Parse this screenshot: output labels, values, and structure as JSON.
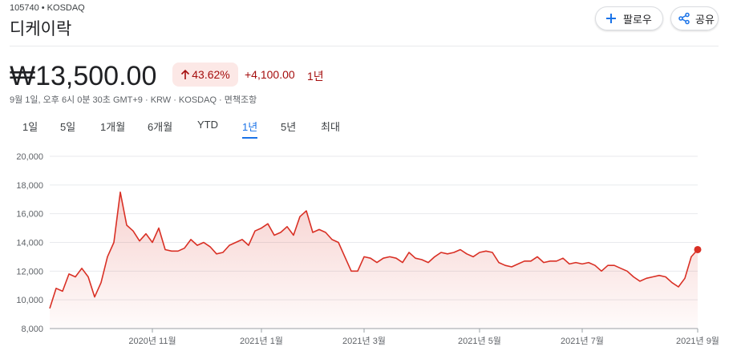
{
  "header": {
    "ticker": "105740 • KOSDAQ",
    "name": "디케이락",
    "buttons": [
      "팔로우",
      "공유"
    ]
  },
  "quote": {
    "price": "₩13,500.00",
    "change_percent": "43.62%",
    "change": "+4,100.00",
    "period": "1년",
    "meta": "9월 1일, 오후 6시 0분 30초 GMT+9 · KRW · KOSDAQ · 면책조항"
  },
  "tabs": {
    "items": [
      "1일",
      "5일",
      "1개월",
      "6개월",
      "YTD",
      "1년",
      "5년",
      "최대"
    ],
    "selected": 5
  },
  "chart_data": {
    "type": "line",
    "color": "#d93025",
    "grid": true,
    "ylim": [
      8000,
      20000
    ],
    "yticks": [
      {
        "value": 8000,
        "label": "8,000"
      },
      {
        "value": 10000,
        "label": "10,000"
      },
      {
        "value": 12000,
        "label": "12,000"
      },
      {
        "value": 14000,
        "label": "14,000"
      },
      {
        "value": 16000,
        "label": "16,000"
      },
      {
        "value": 18000,
        "label": "18,000"
      },
      {
        "value": 20000,
        "label": "20,000"
      }
    ],
    "xlim": [
      0,
      101
    ],
    "xticks": [
      {
        "value": 16,
        "label": "2020년 11월"
      },
      {
        "value": 33,
        "label": "2021년 1월"
      },
      {
        "value": 49,
        "label": "2021년 3월"
      },
      {
        "value": 67,
        "label": "2021년 5월"
      },
      {
        "value": 83,
        "label": "2021년 7월"
      },
      {
        "value": 101,
        "label": "2021년 9월"
      }
    ],
    "values": [
      9400,
      10800,
      10600,
      11800,
      11600,
      12200,
      11600,
      10200,
      11200,
      13000,
      14000,
      17500,
      15200,
      14800,
      14100,
      14600,
      14000,
      15000,
      13500,
      13400,
      13400,
      13600,
      14200,
      13800,
      14000,
      13700,
      13200,
      13300,
      13800,
      14000,
      14200,
      13800,
      14800,
      15000,
      15300,
      14500,
      14700,
      15100,
      14500,
      15800,
      16200,
      14700,
      14900,
      14700,
      14200,
      14000,
      13000,
      12000,
      12000,
      13000,
      12900,
      12600,
      12900,
      13000,
      12900,
      12600,
      13300,
      12900,
      12800,
      12600,
      13000,
      13300,
      13200,
      13300,
      13500,
      13200,
      13000,
      13300,
      13400,
      13300,
      12600,
      12400,
      12300,
      12500,
      12700,
      12700,
      13000,
      12600,
      12700,
      12700,
      12900,
      12500,
      12600,
      12500,
      12600,
      12400,
      12000,
      12400,
      12400,
      12200,
      12000,
      11600,
      11300,
      11500,
      11600,
      11700,
      11600,
      11200,
      10900,
      11500,
      13000,
      13500
    ]
  }
}
